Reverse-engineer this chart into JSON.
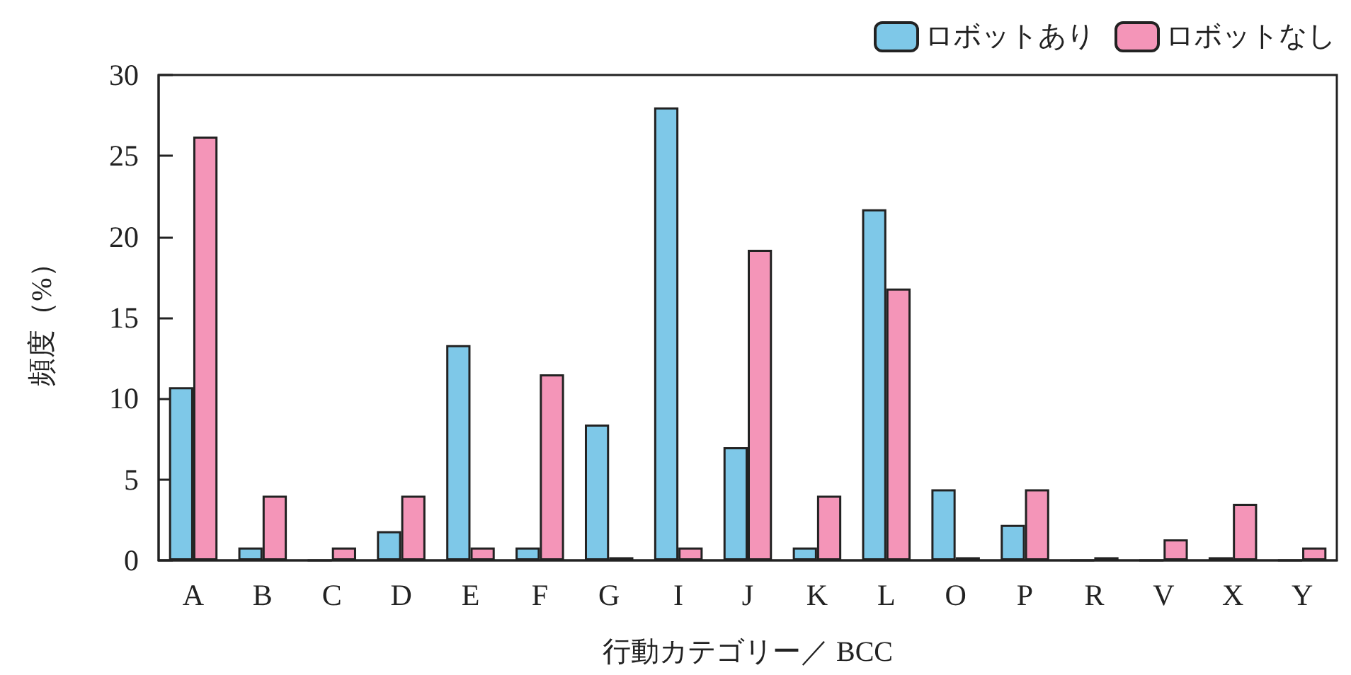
{
  "chart_data": {
    "type": "bar",
    "xlabel": "行動カテゴリー／ BCC",
    "ylabel": "頻度（%）",
    "categories": [
      "A",
      "B",
      "C",
      "D",
      "E",
      "F",
      "G",
      "I",
      "J",
      "K",
      "L",
      "O",
      "P",
      "R",
      "V",
      "X",
      "Y"
    ],
    "series": [
      {
        "name": "ロボットあり",
        "color": "#7ec8e8",
        "values": [
          10.7,
          0.8,
          0,
          1.8,
          13.3,
          0.8,
          8.4,
          28,
          7.0,
          0.8,
          21.7,
          4.4,
          2.2,
          0,
          0,
          0.2,
          0
        ]
      },
      {
        "name": "ロボットなし",
        "color": "#f495b8",
        "values": [
          26.2,
          4.0,
          0.8,
          4.0,
          0.8,
          11.5,
          0.2,
          0.8,
          19.2,
          4.0,
          16.8,
          0.2,
          4.4,
          0.2,
          1.3,
          3.5,
          0.8
        ]
      }
    ],
    "ylim": [
      0,
      30
    ],
    "yticks": [
      0,
      5,
      10,
      15,
      20,
      25,
      30
    ],
    "grid": false,
    "legend": "top right"
  }
}
